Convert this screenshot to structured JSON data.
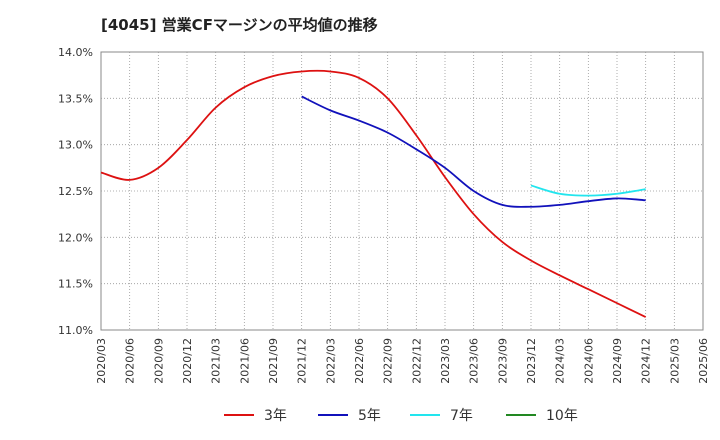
{
  "chart_data": {
    "type": "line",
    "title": "[4045]  営業CFマージンの平均値の推移",
    "xlabel": "",
    "ylabel": "",
    "ylim": [
      11.0,
      14.0
    ],
    "y_ticks": [
      "11.0%",
      "11.5%",
      "12.0%",
      "12.5%",
      "13.0%",
      "13.5%",
      "14.0%"
    ],
    "x_ticks": [
      "2020/03",
      "2020/06",
      "2020/09",
      "2020/12",
      "2021/03",
      "2021/06",
      "2021/09",
      "2021/12",
      "2022/03",
      "2022/06",
      "2022/09",
      "2022/12",
      "2023/03",
      "2023/06",
      "2023/09",
      "2023/12",
      "2024/03",
      "2024/06",
      "2024/09",
      "2024/12",
      "2025/03",
      "2025/06"
    ],
    "grid": true,
    "legend_position": "bottom",
    "series": [
      {
        "name": "3年",
        "color": "#dd1111",
        "values": [
          12.7,
          12.62,
          12.75,
          13.05,
          13.4,
          13.62,
          13.74,
          13.79,
          13.79,
          13.72,
          13.5,
          13.1,
          12.65,
          12.25,
          11.95,
          11.75,
          11.59,
          11.44,
          11.29,
          11.14,
          null,
          null
        ]
      },
      {
        "name": "5年",
        "color": "#1111bb",
        "values": [
          null,
          null,
          null,
          null,
          null,
          null,
          null,
          13.52,
          13.37,
          13.26,
          13.13,
          12.95,
          12.75,
          12.5,
          12.35,
          12.33,
          12.35,
          12.39,
          12.42,
          12.4,
          null,
          null
        ]
      },
      {
        "name": "7年",
        "color": "#22e5ee",
        "values": [
          null,
          null,
          null,
          null,
          null,
          null,
          null,
          null,
          null,
          null,
          null,
          null,
          null,
          null,
          null,
          12.56,
          12.47,
          12.45,
          12.47,
          12.52,
          null,
          null
        ]
      },
      {
        "name": "10年",
        "color": "#228822",
        "values": [
          null,
          null,
          null,
          null,
          null,
          null,
          null,
          null,
          null,
          null,
          null,
          null,
          null,
          null,
          null,
          null,
          null,
          null,
          null,
          null,
          null,
          null
        ]
      }
    ]
  }
}
